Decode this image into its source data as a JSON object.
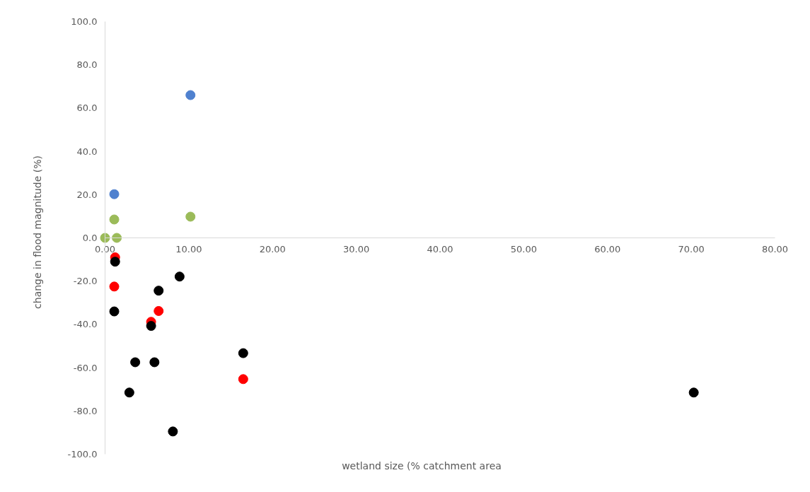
{
  "chart_data": {
    "type": "scatter",
    "xlabel": "wetland size (% catchment area",
    "ylabel": "change in flood magnitude (%)",
    "xlim": [
      0,
      80
    ],
    "ylim": [
      -100,
      100
    ],
    "xticks": [
      {
        "value": 0,
        "label": "0.00"
      },
      {
        "value": 10,
        "label": "10.00"
      },
      {
        "value": 20,
        "label": "20.00"
      },
      {
        "value": 30,
        "label": "30.00"
      },
      {
        "value": 40,
        "label": "40.00"
      },
      {
        "value": 50,
        "label": "50.00"
      },
      {
        "value": 60,
        "label": "60.00"
      },
      {
        "value": 70,
        "label": "70.00"
      },
      {
        "value": 80,
        "label": "80.00"
      }
    ],
    "yticks": [
      {
        "value": -100,
        "label": "-100.0"
      },
      {
        "value": -80,
        "label": "-80.0"
      },
      {
        "value": -60,
        "label": "-60.0"
      },
      {
        "value": -40,
        "label": "-40.0"
      },
      {
        "value": -20,
        "label": "-20.0"
      },
      {
        "value": 0,
        "label": "0.0"
      },
      {
        "value": 20,
        "label": "20.0"
      },
      {
        "value": 40,
        "label": "40.0"
      },
      {
        "value": 60,
        "label": "60.0"
      },
      {
        "value": 80,
        "label": "80.0"
      },
      {
        "value": 100,
        "label": "100.0"
      }
    ],
    "grid": false,
    "legend": false,
    "marker": "circle",
    "series": [
      {
        "color": "#4f81cf",
        "x": [
          1.1,
          10.2
        ],
        "values": [
          20.2,
          66
        ]
      },
      {
        "color": "#9bbb59",
        "x": [
          0,
          1.4,
          1.1,
          10.2
        ],
        "values": [
          0,
          0,
          8.5,
          9.8
        ]
      },
      {
        "color": "#ff0000",
        "x": [
          1.2,
          1.1,
          6.4,
          5.5,
          16.5
        ],
        "values": [
          -9,
          -22.5,
          -33.8,
          -38.8,
          -65.3
        ]
      },
      {
        "color": "#000000",
        "x": [
          1.2,
          8.9,
          6.4,
          1.1,
          5.5,
          3.6,
          5.9,
          2.9,
          8.1,
          16.5,
          70.3
        ],
        "values": [
          -11,
          -17.9,
          -24.4,
          -34,
          -40.7,
          -57.5,
          -57.5,
          -71.5,
          -89.5,
          -53.3,
          -71.5
        ]
      }
    ]
  }
}
